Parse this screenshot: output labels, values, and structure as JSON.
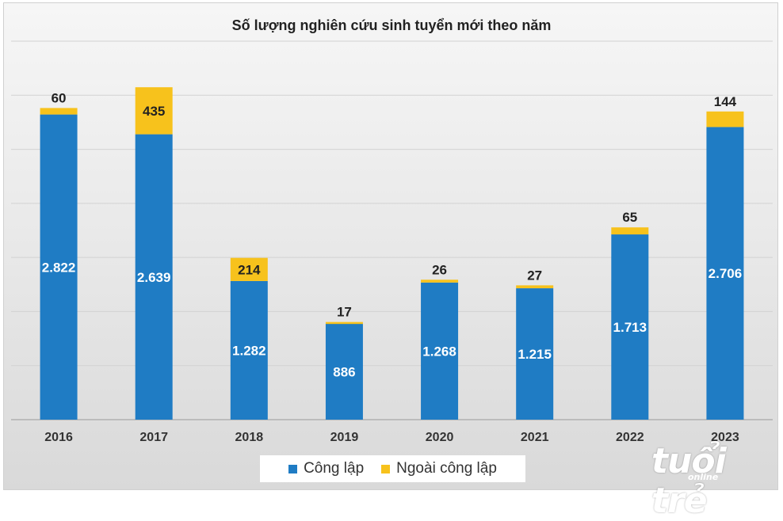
{
  "chart_data": {
    "type": "bar",
    "stacked": true,
    "title": "Số lượng nghiên cứu sinh tuyển mới theo năm",
    "categories": [
      "2016",
      "2017",
      "2018",
      "2019",
      "2020",
      "2021",
      "2022",
      "2023"
    ],
    "series": [
      {
        "name": "Công lập",
        "color": "#1f7cc4",
        "values": [
          2822,
          2639,
          1282,
          886,
          1268,
          1215,
          1713,
          2706
        ],
        "labels": [
          "2.822",
          "2.639",
          "1.282",
          "886",
          "1.268",
          "1.215",
          "1.713",
          "2.706"
        ]
      },
      {
        "name": "Ngoài công lập",
        "color": "#f7c21c",
        "values": [
          60,
          435,
          214,
          17,
          26,
          27,
          65,
          144
        ],
        "labels": [
          "60",
          "435",
          "214",
          "17",
          "26",
          "27",
          "65",
          "144"
        ]
      }
    ],
    "ylim": [
      0,
      3500
    ],
    "y_ticks": [
      0,
      500,
      1000,
      1500,
      2000,
      2500,
      3000,
      3500
    ],
    "grid": true,
    "legend_position": "bottom"
  },
  "watermark": {
    "text": "tuổi trẻ",
    "subtext": "online"
  }
}
